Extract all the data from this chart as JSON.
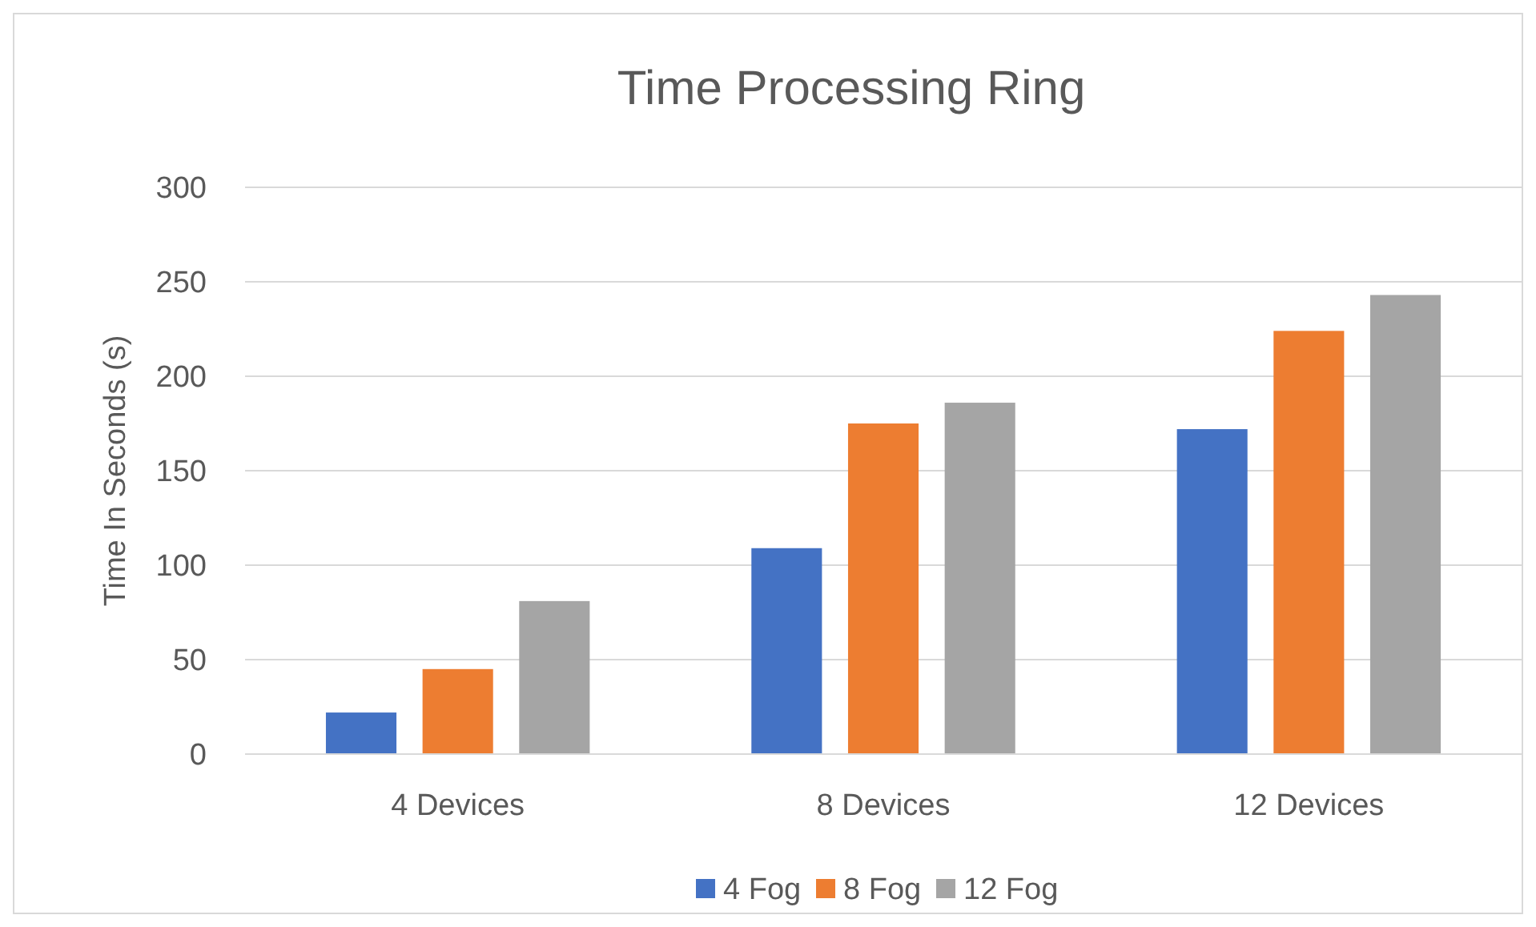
{
  "chart_data": {
    "type": "bar",
    "title": "Time Processing Ring",
    "ylabel": "Time In Seconds (s)",
    "categories": [
      "4 Devices",
      "8 Devices",
      "12 Devices"
    ],
    "series": [
      {
        "name": "4 Fog",
        "color": "#4472c4",
        "values": [
          22,
          109,
          172
        ]
      },
      {
        "name": "8 Fog",
        "color": "#ed7d31",
        "values": [
          45,
          175,
          224
        ]
      },
      {
        "name": "12 Fog",
        "color": "#a5a5a5",
        "values": [
          81,
          186,
          243
        ]
      }
    ],
    "ylim": [
      0,
      300
    ],
    "yticks": [
      0,
      50,
      100,
      150,
      200,
      250,
      300
    ],
    "grid": "y",
    "legend": "bottom"
  }
}
